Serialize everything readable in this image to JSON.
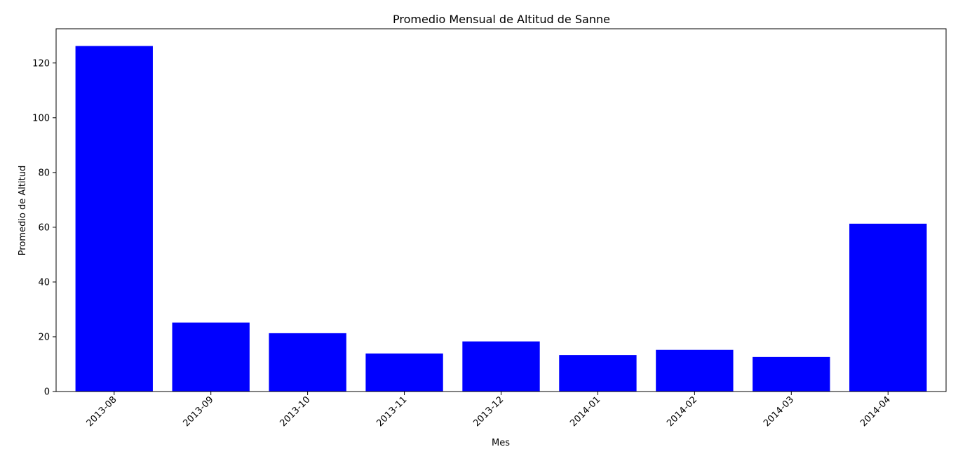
{
  "chart_data": {
    "type": "bar",
    "title": "Promedio Mensual de Altitud de Sanne",
    "xlabel": "Mes",
    "ylabel": "Promedio de Altitud",
    "categories": [
      "2013-08",
      "2013-09",
      "2013-10",
      "2013-11",
      "2013-12",
      "2014-01",
      "2014-02",
      "2014-03",
      "2014-04"
    ],
    "values": [
      126.2,
      25.2,
      21.3,
      13.9,
      18.3,
      13.3,
      15.2,
      12.6,
      61.3
    ],
    "ylim": [
      0,
      132.5
    ],
    "yticks": [
      0,
      20,
      40,
      60,
      80,
      100,
      120
    ],
    "bar_color": "#0000ff",
    "grid": false,
    "legend": "none"
  }
}
